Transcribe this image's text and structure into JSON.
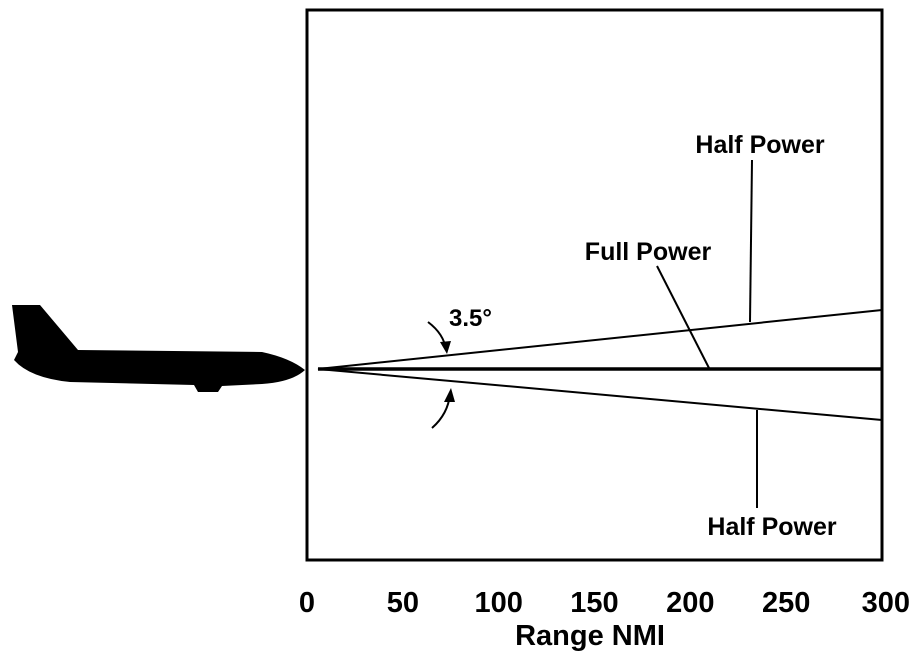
{
  "axis": {
    "title": "Range NMI",
    "lim": [
      0,
      300
    ],
    "ticks": [
      0,
      50,
      100,
      150,
      200,
      250,
      300
    ]
  },
  "labels": {
    "half_power_top": "Half Power",
    "full_power": "Full Power",
    "angle": "3.5°",
    "half_power_bottom": "Half Power"
  }
}
